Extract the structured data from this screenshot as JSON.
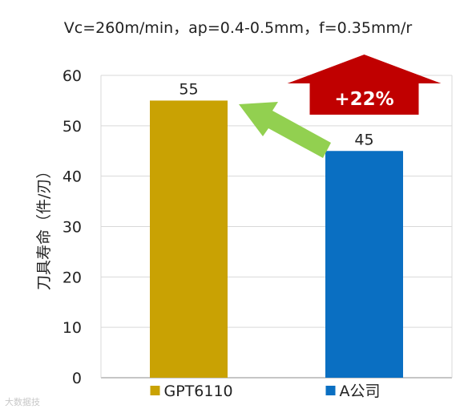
{
  "chart_data": {
    "type": "bar",
    "subtitle": "Vc=260m/min，ap=0.4-0.5mm，f=0.35mm/r",
    "ylabel": "刀具寿命（件/刃）",
    "xlabel": "",
    "ylim": [
      0,
      60
    ],
    "yticks": [
      0,
      10,
      20,
      30,
      40,
      50,
      60
    ],
    "grid": true,
    "legend_position": "bottom",
    "categories": [
      "GPT6110",
      "A公司"
    ],
    "values": [
      55,
      45
    ],
    "data_labels": [
      "55",
      "45"
    ],
    "colors": [
      "#C9A203",
      "#0A6FC2"
    ],
    "annotation": {
      "text": "+22%",
      "arrow_up_color": "#C00000",
      "arrow_pointer_color": "#92D050"
    }
  },
  "watermark": "大数据技"
}
